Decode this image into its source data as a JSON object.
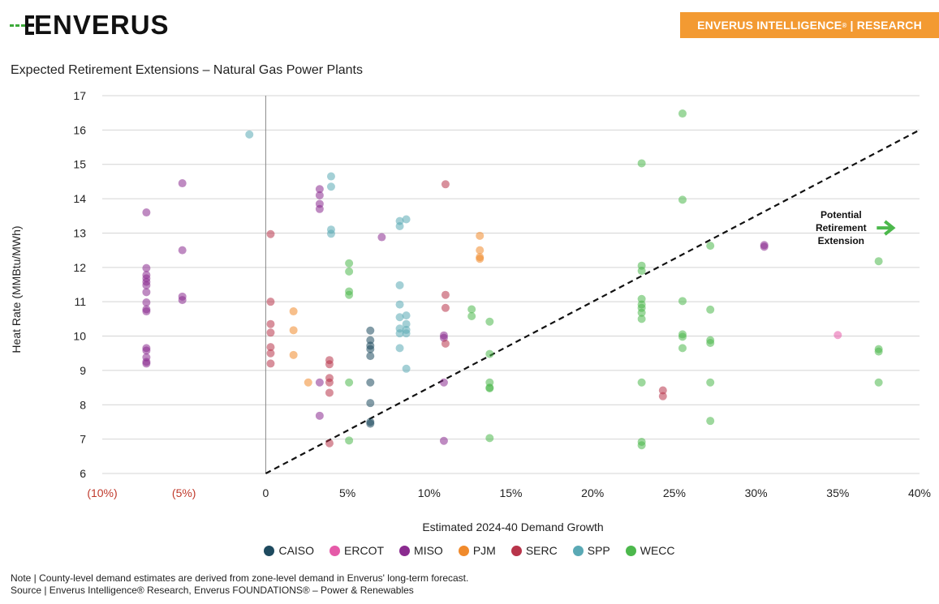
{
  "header": {
    "logo_text": "ENVERUS",
    "banner_prefix": "ENVERUS INTELLIGENCE",
    "banner_mark": "®",
    "banner_suffix": " | RESEARCH"
  },
  "notes": {
    "note": "Note | County-level demand estimates are derived from zone-level demand in Enverus' long-term forecast.",
    "source": "Source | Enverus Intelligence® Research, Enverus FOUNDATIONS® – Power & Renewables"
  },
  "colors": {
    "banner": "#f39a32",
    "logo_accent": "#3daa3a",
    "CAISO": "#1e4a5f",
    "ERCOT": "#e55aa8",
    "MISO": "#8a2b8f",
    "PJM": "#f08a2c",
    "SERC": "#b8344a",
    "SPP": "#5aa9b5",
    "WECC": "#4cb84c"
  },
  "chart_data": {
    "type": "scatter",
    "title": "Expected Retirement Extensions – Natural Gas Power Plants",
    "xlabel": "Estimated 2024-40 Demand Growth",
    "ylabel": "Heat Rate (MMBtu/MWh)",
    "xlim": [
      -0.1,
      0.4
    ],
    "ylim": [
      6,
      17
    ],
    "x_ticks": [
      -0.1,
      -0.05,
      0,
      0.05,
      0.1,
      0.15,
      0.2,
      0.25,
      0.3,
      0.35,
      0.4
    ],
    "x_tick_labels": [
      "(10%)",
      "(5%)",
      "0",
      "5%",
      "10%",
      "15%",
      "20%",
      "25%",
      "30%",
      "35%",
      "40%"
    ],
    "y_ticks": [
      6,
      7,
      8,
      9,
      10,
      11,
      12,
      13,
      14,
      15,
      16,
      17
    ],
    "y_tick_labels": [
      "6",
      "7",
      "8",
      "9",
      "10",
      "11",
      "12",
      "13",
      "14",
      "15",
      "16",
      "17"
    ],
    "legend_position": "bottom-center",
    "grid": "horizontal",
    "reference_line": {
      "style": "dashed",
      "from": [
        0,
        6
      ],
      "to": [
        0.4,
        16
      ]
    },
    "annotation": {
      "lines": [
        "Potential",
        "Retirement",
        "Extension"
      ],
      "x": 0.352,
      "y": 13.15
    },
    "series": [
      {
        "name": "CAISO",
        "points": [
          [
            0.064,
            10.16
          ],
          [
            0.064,
            9.88
          ],
          [
            0.064,
            9.72
          ],
          [
            0.064,
            9.62
          ],
          [
            0.064,
            9.42
          ],
          [
            0.064,
            8.65
          ],
          [
            0.064,
            8.05
          ],
          [
            0.064,
            7.5
          ],
          [
            0.064,
            7.45
          ]
        ]
      },
      {
        "name": "ERCOT",
        "points": [
          [
            0.35,
            10.03
          ]
        ]
      },
      {
        "name": "MISO",
        "points": [
          [
            -0.073,
            13.6
          ],
          [
            -0.073,
            11.98
          ],
          [
            -0.073,
            11.78
          ],
          [
            -0.073,
            11.68
          ],
          [
            -0.073,
            11.58
          ],
          [
            -0.073,
            11.48
          ],
          [
            -0.073,
            11.28
          ],
          [
            -0.073,
            10.98
          ],
          [
            -0.073,
            10.78
          ],
          [
            -0.073,
            10.72
          ],
          [
            -0.073,
            9.65
          ],
          [
            -0.073,
            9.58
          ],
          [
            -0.073,
            9.38
          ],
          [
            -0.073,
            9.25
          ],
          [
            -0.073,
            9.2
          ],
          [
            -0.051,
            14.45
          ],
          [
            -0.051,
            12.5
          ],
          [
            -0.051,
            11.15
          ],
          [
            -0.051,
            11.05
          ],
          [
            0.033,
            14.28
          ],
          [
            0.033,
            14.1
          ],
          [
            0.033,
            13.85
          ],
          [
            0.033,
            13.7
          ],
          [
            0.033,
            8.65
          ],
          [
            0.033,
            7.68
          ],
          [
            0.071,
            12.88
          ],
          [
            0.109,
            10.02
          ],
          [
            0.109,
            9.95
          ],
          [
            0.109,
            8.65
          ],
          [
            0.109,
            6.95
          ],
          [
            0.305,
            12.65
          ],
          [
            0.305,
            12.6
          ]
        ]
      },
      {
        "name": "PJM",
        "points": [
          [
            0.017,
            10.72
          ],
          [
            0.017,
            10.17
          ],
          [
            0.017,
            9.45
          ],
          [
            0.026,
            8.65
          ],
          [
            0.131,
            12.92
          ],
          [
            0.131,
            12.5
          ],
          [
            0.131,
            12.3
          ],
          [
            0.131,
            12.25
          ]
        ]
      },
      {
        "name": "SERC",
        "points": [
          [
            0.003,
            12.97
          ],
          [
            0.003,
            11.0
          ],
          [
            0.003,
            10.35
          ],
          [
            0.003,
            10.1
          ],
          [
            0.003,
            9.68
          ],
          [
            0.003,
            9.5
          ],
          [
            0.003,
            9.2
          ],
          [
            0.039,
            9.3
          ],
          [
            0.039,
            9.18
          ],
          [
            0.039,
            8.78
          ],
          [
            0.039,
            8.65
          ],
          [
            0.039,
            8.35
          ],
          [
            0.039,
            6.88
          ],
          [
            0.11,
            14.42
          ],
          [
            0.11,
            11.2
          ],
          [
            0.11,
            10.82
          ],
          [
            0.11,
            9.78
          ],
          [
            0.243,
            8.42
          ],
          [
            0.243,
            8.25
          ]
        ]
      },
      {
        "name": "SPP",
        "points": [
          [
            -0.01,
            15.87
          ],
          [
            0.04,
            14.65
          ],
          [
            0.04,
            14.35
          ],
          [
            0.04,
            13.1
          ],
          [
            0.04,
            12.98
          ],
          [
            0.082,
            13.35
          ],
          [
            0.082,
            13.2
          ],
          [
            0.082,
            11.48
          ],
          [
            0.082,
            10.92
          ],
          [
            0.082,
            10.55
          ],
          [
            0.082,
            10.22
          ],
          [
            0.082,
            10.08
          ],
          [
            0.082,
            9.65
          ],
          [
            0.086,
            13.4
          ],
          [
            0.086,
            10.6
          ],
          [
            0.086,
            10.35
          ],
          [
            0.086,
            10.18
          ],
          [
            0.086,
            10.08
          ],
          [
            0.086,
            9.05
          ]
        ]
      },
      {
        "name": "WECC",
        "points": [
          [
            0.051,
            12.12
          ],
          [
            0.051,
            11.88
          ],
          [
            0.051,
            11.3
          ],
          [
            0.051,
            11.2
          ],
          [
            0.051,
            8.65
          ],
          [
            0.051,
            6.96
          ],
          [
            0.126,
            10.78
          ],
          [
            0.126,
            10.58
          ],
          [
            0.137,
            10.42
          ],
          [
            0.137,
            9.48
          ],
          [
            0.137,
            8.65
          ],
          [
            0.137,
            8.5
          ],
          [
            0.137,
            8.48
          ],
          [
            0.137,
            7.03
          ],
          [
            0.23,
            15.03
          ],
          [
            0.23,
            12.05
          ],
          [
            0.23,
            11.9
          ],
          [
            0.23,
            11.08
          ],
          [
            0.23,
            10.92
          ],
          [
            0.23,
            10.82
          ],
          [
            0.23,
            10.68
          ],
          [
            0.23,
            10.5
          ],
          [
            0.23,
            8.65
          ],
          [
            0.23,
            6.92
          ],
          [
            0.23,
            6.82
          ],
          [
            0.255,
            16.48
          ],
          [
            0.255,
            13.97
          ],
          [
            0.255,
            11.02
          ],
          [
            0.255,
            10.05
          ],
          [
            0.255,
            9.98
          ],
          [
            0.255,
            9.65
          ],
          [
            0.272,
            12.63
          ],
          [
            0.272,
            10.77
          ],
          [
            0.272,
            9.88
          ],
          [
            0.272,
            9.8
          ],
          [
            0.272,
            8.65
          ],
          [
            0.272,
            7.53
          ],
          [
            0.375,
            12.18
          ],
          [
            0.375,
            9.62
          ],
          [
            0.375,
            9.55
          ],
          [
            0.375,
            8.65
          ]
        ]
      }
    ]
  }
}
